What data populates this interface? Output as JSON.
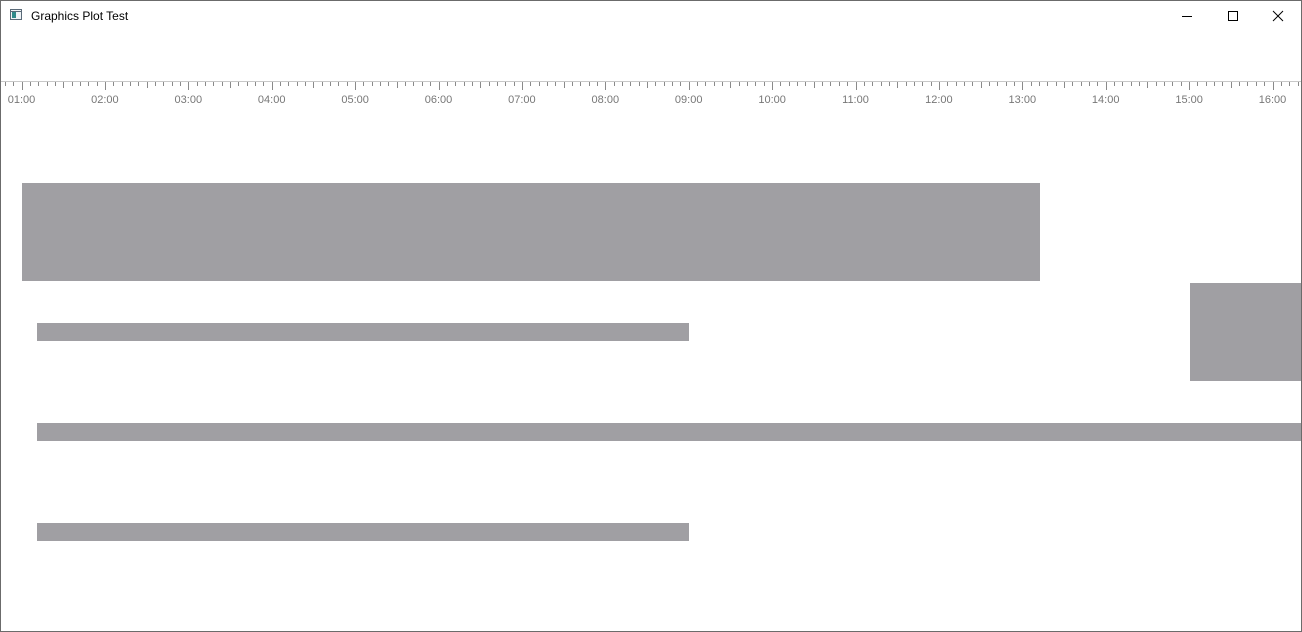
{
  "window": {
    "title": "Graphics Plot Test",
    "icon": "app-window-icon",
    "controls": [
      "minimize-icon",
      "maximize-icon",
      "close-icon"
    ]
  },
  "timeline": {
    "tick_labels": [
      "01:00",
      "02:00",
      "03:00",
      "04:00",
      "05:00",
      "06:00",
      "07:00",
      "08:00",
      "09:00",
      "10:00",
      "11:00",
      "12:00",
      "13:00",
      "14:00",
      "15:00",
      "16:00"
    ],
    "minor_ticks_per_hour": 10
  },
  "bars": [
    {
      "name": "bar-1",
      "start_hour": 1.01,
      "end_hour": 13.22,
      "row": "large-top"
    },
    {
      "name": "bar-2",
      "start_hour": 1.18,
      "end_hour": 9.0,
      "row": 2
    },
    {
      "name": "bar-3",
      "start_hour": 15.01,
      "end_hour": 16.5,
      "row": "large-right"
    },
    {
      "name": "bar-4",
      "start_hour": 1.18,
      "end_hour": 16.5,
      "row": 3
    },
    {
      "name": "bar-5",
      "start_hour": 1.18,
      "end_hour": 9.0,
      "row": 4
    }
  ],
  "colors": {
    "bar": "#a09fa3",
    "tick_label": "#777777",
    "tick": "#8a8a8a"
  }
}
